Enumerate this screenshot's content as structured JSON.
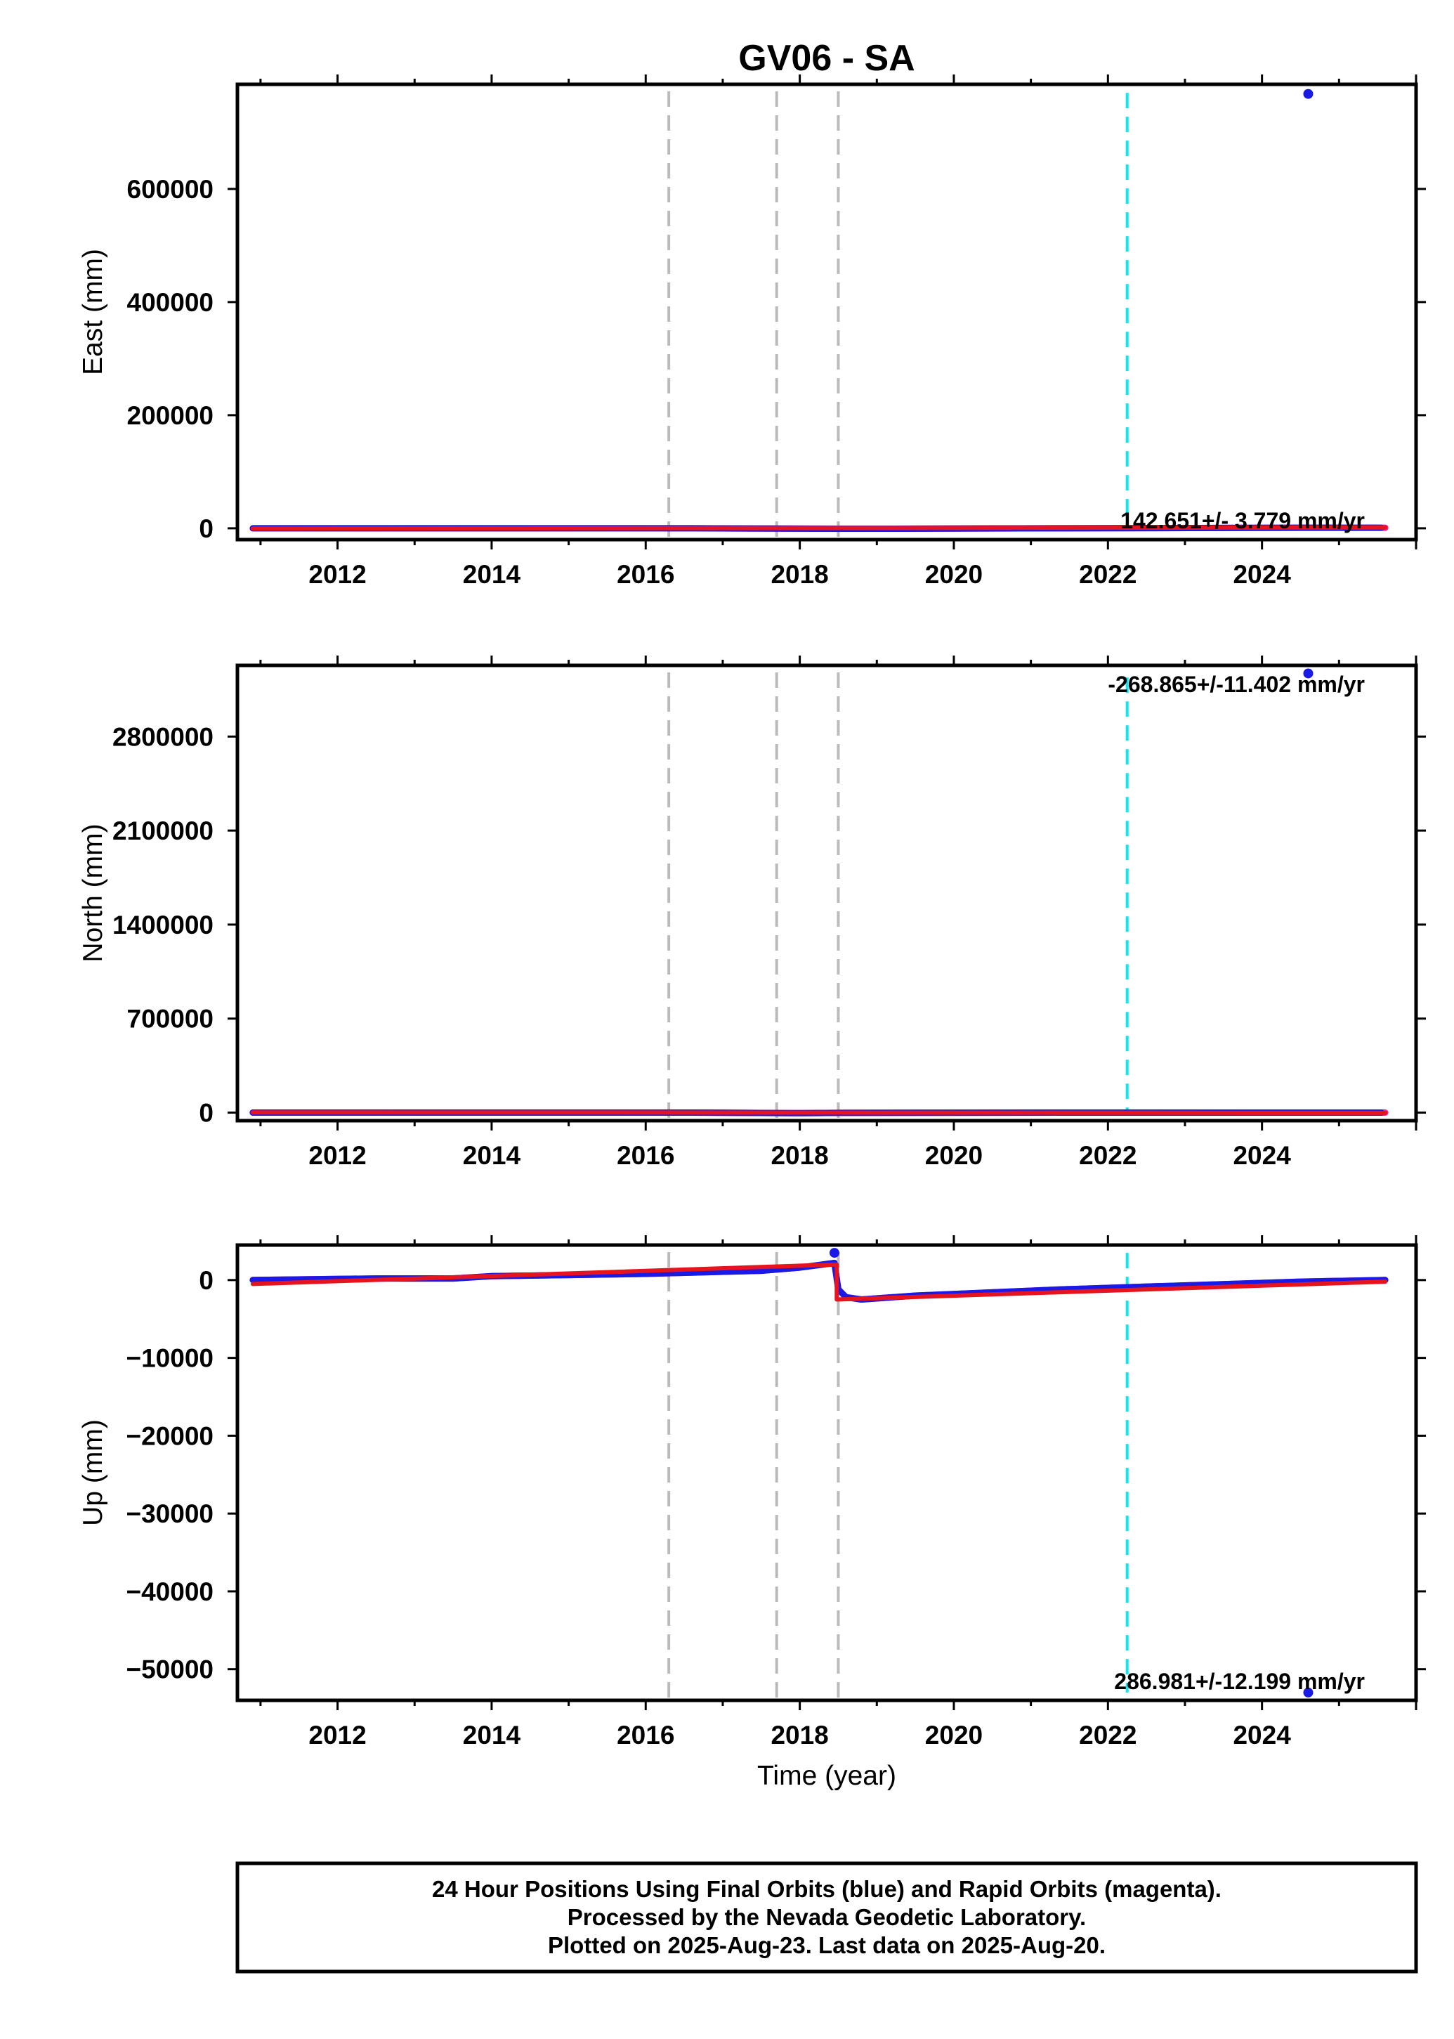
{
  "title": "GV06 - SA",
  "xlabel": "Time (year)",
  "footer": {
    "lines": [
      "24 Hour Positions Using Final Orbits (blue) and Rapid Orbits (magenta).",
      "Processed by the Nevada Geodetic Laboratory.",
      "Plotted on 2025-Aug-23. Last data on 2025-Aug-20."
    ]
  },
  "colors": {
    "final": "#1a1ae6",
    "rapid": "#ff1a8c",
    "model": "#e6141e",
    "event_line": "#bbbbbb",
    "current_line": "#11e6ee"
  },
  "event_lines_x": [
    2016.3,
    2017.7,
    2018.5
  ],
  "current_line_x": 2022.25,
  "chart_data": [
    {
      "type": "scatter",
      "ylabel": "East (mm)",
      "xlim": [
        2010.7,
        2026.0
      ],
      "ylim": [
        -20000,
        785000
      ],
      "xticks": [
        2012,
        2014,
        2016,
        2018,
        2020,
        2022,
        2024
      ],
      "yticks": [
        0,
        200000,
        400000,
        600000
      ],
      "ytick_labels": [
        "0",
        "200000",
        "400000",
        "600000"
      ],
      "rate_label": "142.651+/- 3.779 mm/yr",
      "rate_position": "bottom-right",
      "current_line_span": [
        0,
        770000
      ],
      "final_x": [
        2010.9,
        2016.6,
        2018.5,
        2019.2,
        2021.4,
        2024.5,
        2025.55
      ],
      "final_y": [
        0,
        0,
        -800,
        -800,
        0,
        1000,
        1000
      ],
      "rapid_x": [
        2010.9,
        2016.6,
        2018.5,
        2019.2,
        2021.4,
        2024.5,
        2025.6
      ],
      "rapid_y": [
        0,
        0,
        -800,
        -800,
        0,
        1000,
        1000
      ],
      "model_x": [
        2010.9,
        2025.6
      ],
      "model_y": [
        -500,
        1500
      ],
      "outliers_x": [
        2024.6
      ],
      "outliers_y": [
        768000
      ]
    },
    {
      "type": "scatter",
      "ylabel": "North (mm)",
      "xlim": [
        2010.7,
        2026.0
      ],
      "ylim": [
        -60000,
        3330000
      ],
      "xticks": [
        2012,
        2014,
        2016,
        2018,
        2020,
        2022,
        2024
      ],
      "yticks": [
        0,
        700000,
        1400000,
        2100000,
        2800000
      ],
      "ytick_labels": [
        "0",
        "700000",
        "1400000",
        "2100000",
        "2800000"
      ],
      "rate_label": "-268.865+/-11.402 mm/yr",
      "rate_position": "top-right",
      "current_line_span": [
        0,
        3240000
      ],
      "final_x": [
        2010.9,
        2016.6,
        2017.9,
        2018.5,
        2021.4,
        2025.55
      ],
      "final_y": [
        0,
        0,
        -4000,
        -2000,
        0,
        0
      ],
      "rapid_x": [
        2010.9,
        2016.6,
        2017.9,
        2018.5,
        2021.4,
        2025.6
      ],
      "rapid_y": [
        0,
        0,
        -4000,
        -2000,
        0,
        0
      ],
      "model_x": [
        2010.9,
        2025.6
      ],
      "model_y": [
        1500,
        -2000
      ],
      "outliers_x": [
        2024.6
      ],
      "outliers_y": [
        3270000
      ]
    },
    {
      "type": "scatter",
      "ylabel": "Up (mm)",
      "xlim": [
        2010.7,
        2026.0
      ],
      "ylim": [
        -54000,
        4500
      ],
      "xticks": [
        2012,
        2014,
        2016,
        2018,
        2020,
        2022,
        2024
      ],
      "yticks": [
        0,
        -10000,
        -20000,
        -30000,
        -40000,
        -50000
      ],
      "ytick_labels": [
        "0",
        "−10000",
        "−20000",
        "−30000",
        "−40000",
        "−50000"
      ],
      "rate_label": "286.981+/-12.199 mm/yr",
      "rate_position": "bottom-right",
      "current_line_span": [
        -53000,
        3500
      ],
      "final_x": [
        2010.9,
        2012.5,
        2013.5,
        2014.0,
        2016.0,
        2017.5,
        2018.0,
        2018.45,
        2018.5,
        2018.6,
        2018.8,
        2019.5,
        2021.4,
        2024.5,
        2025.6
      ],
      "final_y": [
        0,
        200,
        200,
        500,
        800,
        1200,
        1600,
        2200,
        -1200,
        -2200,
        -2500,
        -2000,
        -1200,
        -200,
        0
      ],
      "rapid_x": [
        2010.9,
        2012.5,
        2013.5,
        2014.0,
        2016.0,
        2017.5,
        2018.0,
        2018.45,
        2018.5,
        2018.6,
        2018.8,
        2019.5,
        2021.4,
        2024.5,
        2025.6
      ],
      "rapid_y": [
        0,
        200,
        200,
        500,
        800,
        1200,
        1600,
        2200,
        -1200,
        -2200,
        -2500,
        -2000,
        -1200,
        -200,
        0
      ],
      "model_x": [
        2010.9,
        2018.48,
        2018.48,
        2025.6
      ],
      "model_y": [
        -500,
        2000,
        -2500,
        -200
      ],
      "outliers_x": [
        2018.45,
        2024.6
      ],
      "outliers_y": [
        3500,
        -53000
      ]
    }
  ]
}
